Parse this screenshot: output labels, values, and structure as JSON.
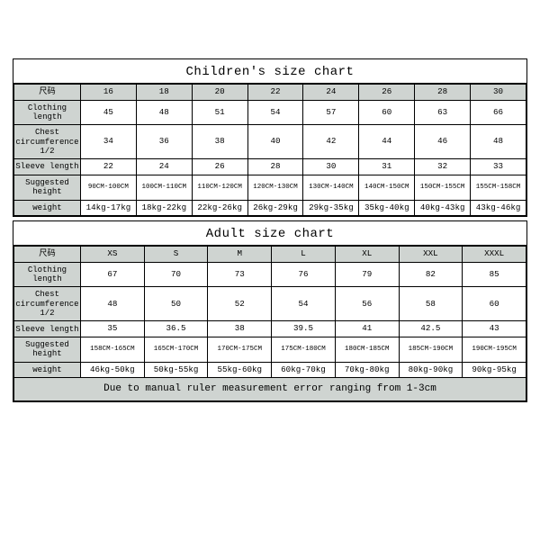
{
  "colors": {
    "background": "#ffffff",
    "border": "#000000",
    "header_bg": "#cfd4d1",
    "text": "#000000"
  },
  "typography": {
    "font_family": "Courier New, monospace",
    "title_fontsize": 14,
    "cell_fontsize": 9.2,
    "tiny_fontsize": 7.5,
    "note_fontsize": 11
  },
  "children": {
    "title": "Children's size chart",
    "row_header_label": "尺码",
    "columns": [
      "16",
      "18",
      "20",
      "22",
      "24",
      "26",
      "28",
      "30"
    ],
    "rows": [
      {
        "label": "Clothing length",
        "values": [
          "45",
          "48",
          "51",
          "54",
          "57",
          "60",
          "63",
          "66"
        ]
      },
      {
        "label": "Chest circumference 1/2",
        "values": [
          "34",
          "36",
          "38",
          "40",
          "42",
          "44",
          "46",
          "48"
        ]
      },
      {
        "label": "Sleeve length",
        "values": [
          "22",
          "24",
          "26",
          "28",
          "30",
          "31",
          "32",
          "33"
        ]
      },
      {
        "label": "Suggested height",
        "tiny": true,
        "values": [
          "90CM-100CM",
          "100CM-110CM",
          "110CM-120CM",
          "120CM-130CM",
          "130CM-140CM",
          "140CM-150CM",
          "150CM-155CM",
          "155CM-158CM"
        ]
      },
      {
        "label": "weight",
        "values": [
          "14kg-17kg",
          "18kg-22kg",
          "22kg-26kg",
          "26kg-29kg",
          "29kg-35kg",
          "35kg-40kg",
          "40kg-43kg",
          "43kg-46kg"
        ]
      }
    ]
  },
  "adult": {
    "title": "Adult size chart",
    "row_header_label": "尺码",
    "columns": [
      "XS",
      "S",
      "M",
      "L",
      "XL",
      "XXL",
      "XXXL"
    ],
    "rows": [
      {
        "label": "Clothing length",
        "values": [
          "67",
          "70",
          "73",
          "76",
          "79",
          "82",
          "85"
        ]
      },
      {
        "label": "Chest circumference 1/2",
        "values": [
          "48",
          "50",
          "52",
          "54",
          "56",
          "58",
          "60"
        ]
      },
      {
        "label": "Sleeve length",
        "values": [
          "35",
          "36.5",
          "38",
          "39.5",
          "41",
          "42.5",
          "43"
        ]
      },
      {
        "label": "Suggested height",
        "tiny": true,
        "values": [
          "158CM-165CM",
          "165CM-170CM",
          "170CM-175CM",
          "175CM-180CM",
          "180CM-185CM",
          "185CM-190CM",
          "190CM-195CM"
        ]
      },
      {
        "label": "weight",
        "values": [
          "46kg-50kg",
          "50kg-55kg",
          "55kg-60kg",
          "60kg-70kg",
          "70kg-80kg",
          "80kg-90kg",
          "90kg-95kg"
        ]
      }
    ],
    "note": "Due to manual ruler measurement error ranging from 1-3cm"
  }
}
